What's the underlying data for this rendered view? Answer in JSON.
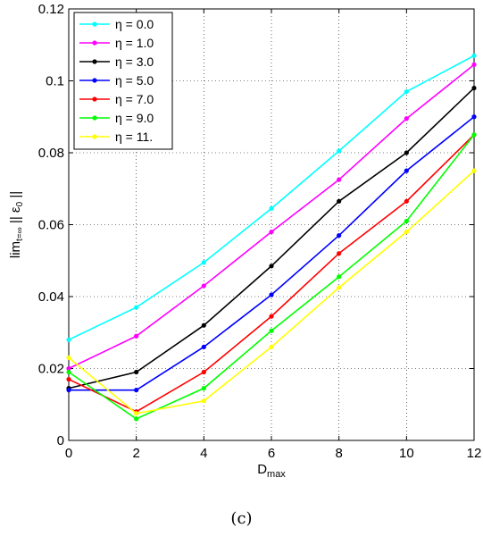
{
  "chart_data": {
    "type": "line",
    "xlabel": "D",
    "xlabel_sub": "max",
    "ylabel_parts": {
      "base": "lim",
      "sub": "t=∞",
      "mid": " || ε",
      "sub2": "0",
      "end": " ||"
    },
    "xlim": [
      0,
      12
    ],
    "ylim": [
      0,
      0.12
    ],
    "x_ticks": [
      "0",
      "2",
      "4",
      "6",
      "8",
      "10",
      "12"
    ],
    "y_ticks": [
      "0",
      "0.02",
      "0.04",
      "0.06",
      "0.08",
      "0.1",
      "0.12"
    ],
    "grid": true,
    "legend_position": "top-left",
    "x": [
      0,
      2,
      4,
      6,
      8,
      10,
      12
    ],
    "series": [
      {
        "name": "η = 0.0",
        "color": "#00ffff",
        "values": [
          0.028,
          0.037,
          0.0495,
          0.0645,
          0.0805,
          0.097,
          0.107
        ]
      },
      {
        "name": "η = 1.0",
        "color": "#ff00ff",
        "values": [
          0.02,
          0.029,
          0.043,
          0.058,
          0.0725,
          0.0895,
          0.1045
        ]
      },
      {
        "name": "η = 3.0",
        "color": "#000000",
        "values": [
          0.0145,
          0.019,
          0.032,
          0.0485,
          0.0665,
          0.08,
          0.098
        ]
      },
      {
        "name": "η = 5.0",
        "color": "#0000ff",
        "values": [
          0.014,
          0.014,
          0.026,
          0.0405,
          0.057,
          0.075,
          0.09
        ]
      },
      {
        "name": "η = 7.0",
        "color": "#ff0000",
        "values": [
          0.017,
          0.008,
          0.019,
          0.0345,
          0.052,
          0.0665,
          0.085
        ]
      },
      {
        "name": "η = 9.0",
        "color": "#00ff00",
        "values": [
          0.019,
          0.006,
          0.0145,
          0.0305,
          0.0455,
          0.061,
          0.085
        ]
      },
      {
        "name": "η = 11.",
        "color": "#ffff00",
        "values": [
          0.023,
          0.0075,
          0.011,
          0.026,
          0.0425,
          0.058,
          0.075
        ]
      }
    ]
  },
  "caption": "(c)"
}
